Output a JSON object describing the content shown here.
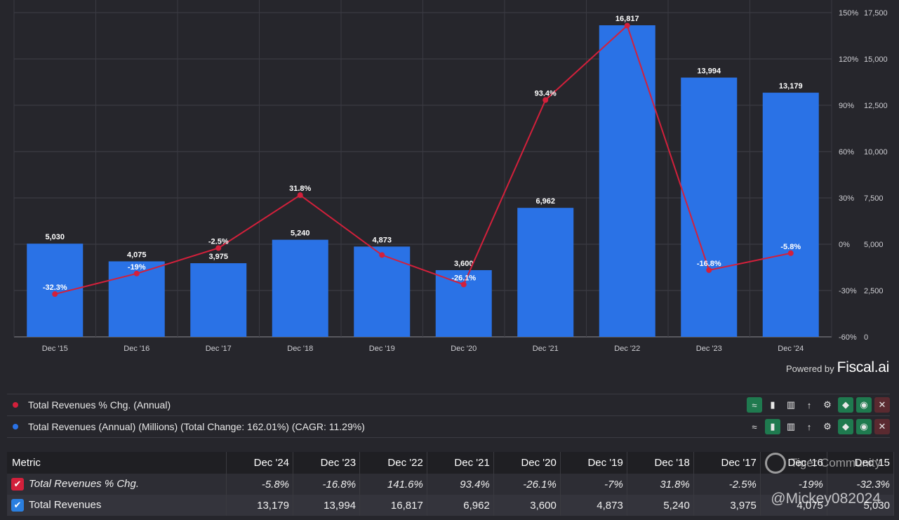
{
  "chart_data": {
    "type": "bar",
    "categories": [
      "Dec '15",
      "Dec '16",
      "Dec '17",
      "Dec '18",
      "Dec '19",
      "Dec '20",
      "Dec '21",
      "Dec '22",
      "Dec '23",
      "Dec '24"
    ],
    "series": [
      {
        "name": "Total Revenues (Annual) (Millions)",
        "type": "bar",
        "axis": "right",
        "values": [
          5030,
          4075,
          3975,
          5240,
          4873,
          3600,
          6962,
          16817,
          13994,
          13179
        ],
        "labels": [
          "5,030",
          "4,075",
          "3,975",
          "5,240",
          "4,873",
          "3,600",
          "6,962",
          "16,817",
          "13,994",
          "13,179"
        ],
        "color": "#2a72e6"
      },
      {
        "name": "Total Revenues % Chg. (Annual)",
        "type": "line",
        "axis": "left",
        "values": [
          -32.3,
          -19,
          -2.5,
          31.8,
          -7,
          -26.1,
          93.4,
          141.6,
          -16.8,
          -5.8
        ],
        "labels": [
          "-32.3%",
          "-19%",
          "-2.5%",
          "31.8%",
          "",
          "-26.1%",
          "93.4%",
          "",
          "-16.8%",
          "-5.8%"
        ],
        "color": "#d3203b"
      }
    ],
    "y_left": {
      "min": -60,
      "max": 150,
      "ticks": [
        "150%",
        "120%",
        "90%",
        "60%",
        "30%",
        "0%",
        "-30%",
        "-60%"
      ]
    },
    "y_right": {
      "min": 0,
      "max": 17500,
      "ticks": [
        "17,500",
        "15,000",
        "12,500",
        "10,000",
        "7,500",
        "5,000",
        "2,500",
        "0"
      ]
    },
    "grid": true
  },
  "powered_by": {
    "label": "Powered by",
    "brand": "Fiscal.ai"
  },
  "legend": [
    {
      "label": "Total Revenues % Chg. (Annual)",
      "color": "#d3203b"
    },
    {
      "label": "Total Revenues (Annual) (Millions) (Total Change: 162.01%) (CAGR: 11.29%)",
      "color": "#2a72e6"
    }
  ],
  "tools": {
    "line_icon": "≈",
    "bar_icon": "▮",
    "stacked_icon": "▥",
    "sort_icon": "↑",
    "gear_icon": "⚙",
    "tag_icon": "◆",
    "eye_icon": "◉",
    "close_icon": "✕"
  },
  "table": {
    "header": [
      "Metric",
      "Dec '24",
      "Dec '23",
      "Dec '22",
      "Dec '21",
      "Dec '20",
      "Dec '19",
      "Dec '18",
      "Dec '17",
      "Dec '16",
      "Dec '15"
    ],
    "rows": [
      {
        "metric": "Total Revenues % Chg.",
        "check": "✔",
        "values": [
          "-5.8%",
          "-16.8%",
          "141.6%",
          "93.4%",
          "-26.1%",
          "-7%",
          "31.8%",
          "-2.5%",
          "-19%",
          "-32.3%"
        ]
      },
      {
        "metric": "Total Revenues",
        "check": "✔",
        "values": [
          "13,179",
          "13,994",
          "16,817",
          "6,962",
          "3,600",
          "4,873",
          "5,240",
          "3,975",
          "4,075",
          "5,030"
        ]
      }
    ]
  },
  "watermark": {
    "text": "Tiger Community",
    "handle": "@Mickey082024"
  }
}
